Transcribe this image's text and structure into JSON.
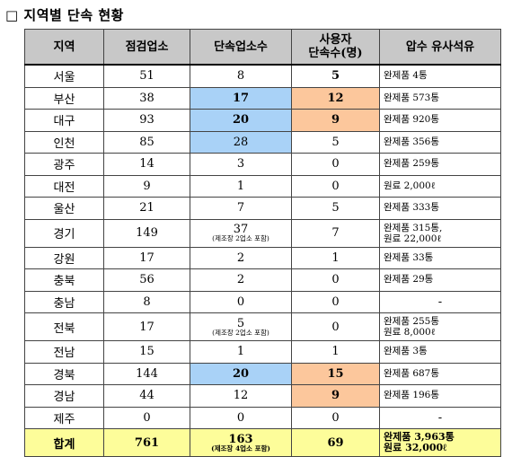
{
  "title": "□ 지역별 단속 현황",
  "columns": [
    "지역",
    "점검업소",
    "단속업소수",
    "사용자\n단속수(명)",
    "압수 유사석유"
  ],
  "rows": [
    {
      "region": "서울",
      "inspected": "51",
      "violations": "8",
      "users": "5",
      "seizure": "완제품 4통"
    },
    {
      "region": "부산",
      "inspected": "38",
      "violations": "17",
      "users": "12",
      "seizure": "완제품 573통"
    },
    {
      "region": "대구",
      "inspected": "93",
      "violations": "20",
      "users": "9",
      "seizure": "완제품 920통"
    },
    {
      "region": "인천",
      "inspected": "85",
      "violations": "28",
      "users": "5",
      "seizure": "완제품 356통"
    },
    {
      "region": "광주",
      "inspected": "14",
      "violations": "3",
      "users": "0",
      "seizure": "완제품 259통"
    },
    {
      "region": "대전",
      "inspected": "9",
      "violations": "1",
      "users": "0",
      "seizure": "원료 2,000ℓ"
    },
    {
      "region": "울산",
      "inspected": "21",
      "violations": "7",
      "users": "5",
      "seizure": "완제품 333통"
    },
    {
      "region": "경기",
      "inspected": "149",
      "violations": "37",
      "violations_note": "(제조장 2업소 포함)",
      "users": "7",
      "seizure": "완제품 315통,",
      "seizure2": "원료 22,000ℓ"
    },
    {
      "region": "강원",
      "inspected": "17",
      "violations": "2",
      "users": "1",
      "seizure": "완제품 33통"
    },
    {
      "region": "충북",
      "inspected": "56",
      "violations": "2",
      "users": "0",
      "seizure": "완제품 29통"
    },
    {
      "region": "충남",
      "inspected": "8",
      "violations": "0",
      "users": "0",
      "seizure": "-"
    },
    {
      "region": "전북",
      "inspected": "17",
      "violations": "5",
      "violations_note": "(제조장 2업소 포함)",
      "users": "0",
      "seizure": "완제품 255통",
      "seizure2": "원료 8,000ℓ"
    },
    {
      "region": "전남",
      "inspected": "15",
      "violations": "1",
      "users": "1",
      "seizure": "완제품 3통"
    },
    {
      "region": "경북",
      "inspected": "144",
      "violations": "20",
      "users": "15",
      "seizure": "완제품 687통"
    },
    {
      "region": "경남",
      "inspected": "44",
      "violations": "12",
      "users": "9",
      "seizure": "완제품 196통"
    },
    {
      "region": "제주",
      "inspected": "0",
      "violations": "0",
      "users": "0",
      "seizure": "-"
    }
  ],
  "total": {
    "region": "합계",
    "inspected": "761",
    "violations": "163",
    "violations_note": "(제조장 4업소 포함)",
    "users": "69",
    "seizure": "완제품 3,963통",
    "seizure2": "원료 32,000ℓ"
  },
  "highlight_colors": {
    "blue": "#a9d2f7",
    "orange": "#fcc79c",
    "header": "#c8c8c8",
    "total": "#fdfd9a"
  }
}
